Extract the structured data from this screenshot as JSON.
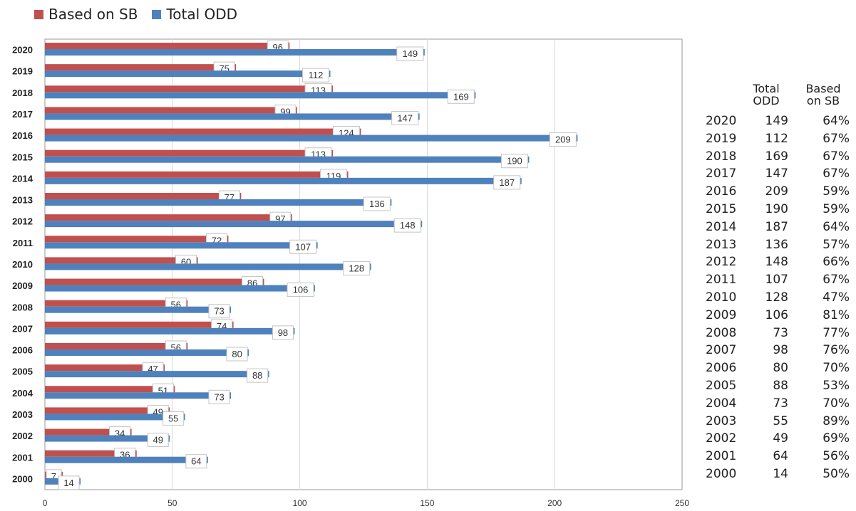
{
  "chart_data": {
    "type": "bar",
    "orientation": "horizontal",
    "categories": [
      "2020",
      "2019",
      "2018",
      "2017",
      "2016",
      "2015",
      "2014",
      "2013",
      "2012",
      "2011",
      "2010",
      "2009",
      "2008",
      "2007",
      "2006",
      "2005",
      "2004",
      "2003",
      "2002",
      "2001",
      "2000"
    ],
    "series": [
      {
        "name": "Based on SB",
        "color": "#c0504d",
        "values": [
          96,
          75,
          113,
          99,
          124,
          113,
          119,
          77,
          97,
          72,
          60,
          86,
          56,
          74,
          56,
          47,
          51,
          49,
          34,
          36,
          7
        ]
      },
      {
        "name": "Total ODD",
        "color": "#4f81bd",
        "values": [
          149,
          112,
          169,
          147,
          209,
          190,
          187,
          136,
          148,
          107,
          128,
          106,
          73,
          98,
          80,
          88,
          73,
          55,
          49,
          64,
          14
        ]
      }
    ],
    "xlim": [
      0,
      250
    ],
    "xticks": [
      0,
      50,
      100,
      150,
      200,
      250
    ],
    "grid": true,
    "legend_position": "top-left",
    "title": "",
    "xlabel": "",
    "ylabel": ""
  },
  "table": {
    "header_total": [
      "Total",
      "ODD"
    ],
    "header_based": [
      "Based",
      "on SB"
    ],
    "rows": [
      {
        "year": "2020",
        "total": "149",
        "based": "64%"
      },
      {
        "year": "2019",
        "total": "112",
        "based": "67%"
      },
      {
        "year": "2018",
        "total": "169",
        "based": "67%"
      },
      {
        "year": "2017",
        "total": "147",
        "based": "67%"
      },
      {
        "year": "2016",
        "total": "209",
        "based": "59%"
      },
      {
        "year": "2015",
        "total": "190",
        "based": "59%"
      },
      {
        "year": "2014",
        "total": "187",
        "based": "64%"
      },
      {
        "year": "2013",
        "total": "136",
        "based": "57%"
      },
      {
        "year": "2012",
        "total": "148",
        "based": "66%"
      },
      {
        "year": "2011",
        "total": "107",
        "based": "67%"
      },
      {
        "year": "2010",
        "total": "128",
        "based": "47%"
      },
      {
        "year": "2009",
        "total": "106",
        "based": "81%"
      },
      {
        "year": "2008",
        "total": "73",
        "based": "77%"
      },
      {
        "year": "2007",
        "total": "98",
        "based": "76%"
      },
      {
        "year": "2006",
        "total": "80",
        "based": "70%"
      },
      {
        "year": "2005",
        "total": "88",
        "based": "53%"
      },
      {
        "year": "2004",
        "total": "73",
        "based": "70%"
      },
      {
        "year": "2003",
        "total": "55",
        "based": "89%"
      },
      {
        "year": "2002",
        "total": "49",
        "based": "69%"
      },
      {
        "year": "2001",
        "total": "64",
        "based": "56%"
      },
      {
        "year": "2000",
        "total": "14",
        "based": "50%"
      }
    ]
  }
}
